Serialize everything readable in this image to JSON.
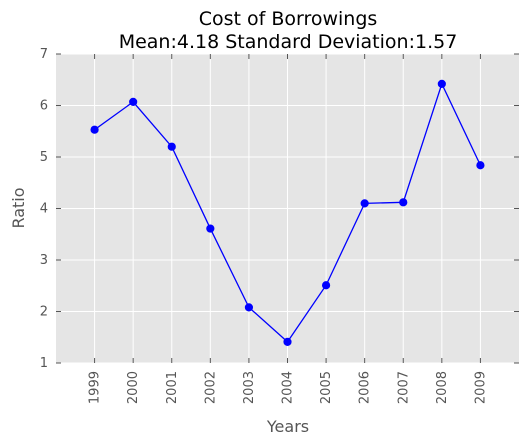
{
  "chart_data": {
    "type": "line",
    "title": "Cost of Borrowings",
    "subtitle": "Mean:4.18 Standard Deviation:1.57",
    "xlabel": "Years",
    "ylabel": "Ratio",
    "x": [
      "1999",
      "2000",
      "2001",
      "2002",
      "2003",
      "2004",
      "2005",
      "2006",
      "2007",
      "2008",
      "2009"
    ],
    "series": [
      {
        "values": [
          5.53,
          6.07,
          5.2,
          3.61,
          2.08,
          1.41,
          2.51,
          4.1,
          4.12,
          6.42,
          4.84
        ]
      }
    ],
    "ylim": [
      1,
      7
    ],
    "yticks": [
      1,
      2,
      3,
      4,
      5,
      6,
      7
    ],
    "grid": true,
    "marker": "circle",
    "line_color": "#0000ff",
    "background_color": "#e5e5e5",
    "grid_color": "#ffffff"
  }
}
